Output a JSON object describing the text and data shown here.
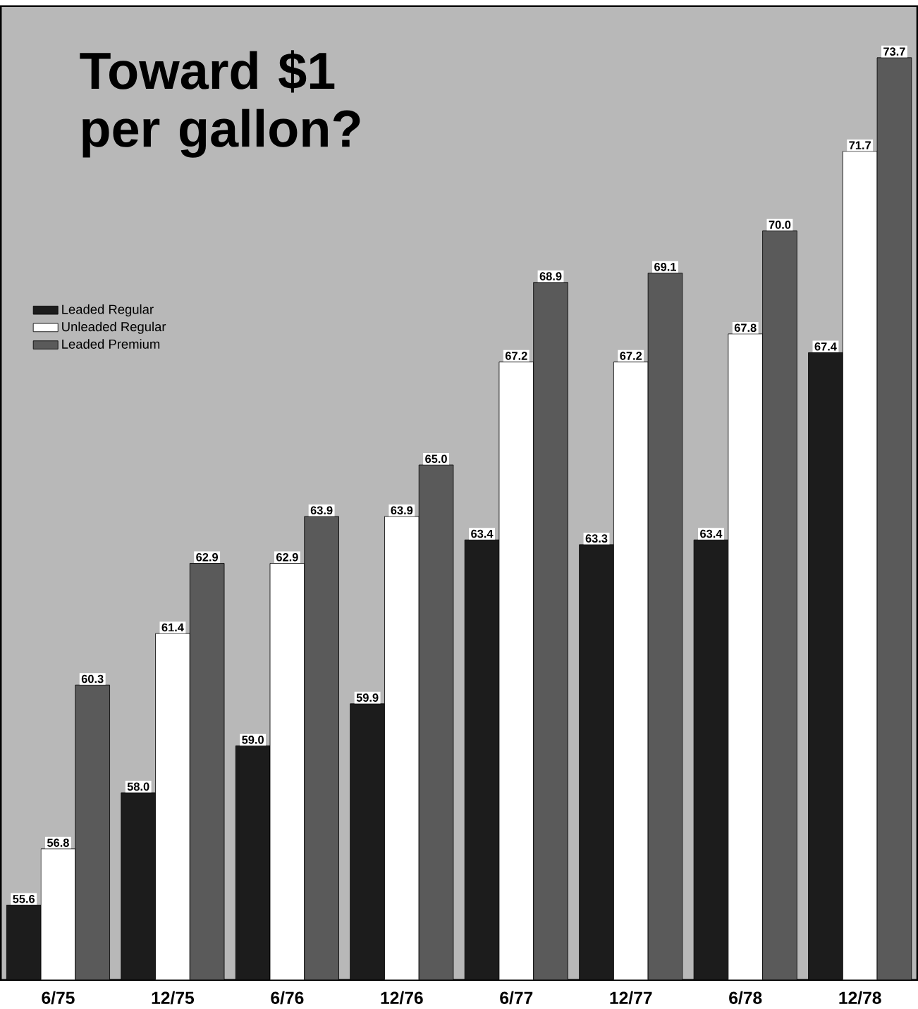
{
  "chart_data": {
    "type": "bar",
    "title": "Toward $1 per gallon?",
    "categories": [
      "6/75",
      "12/75",
      "6/76",
      "12/76",
      "6/77",
      "12/77",
      "6/78",
      "12/78"
    ],
    "series": [
      {
        "name": "Leaded Regular",
        "color": "#1c1c1c",
        "values": [
          55.6,
          58.0,
          59.0,
          59.9,
          63.4,
          63.3,
          63.4,
          67.4
        ],
        "value_labels": [
          "55.6",
          "58.0",
          "59.0",
          "59.9",
          "63.4",
          "63.3",
          "63.4",
          "67.4"
        ]
      },
      {
        "name": "Unleaded Regular",
        "color": "#ffffff",
        "values": [
          56.8,
          61.4,
          62.9,
          63.9,
          67.2,
          67.2,
          67.8,
          71.7
        ],
        "value_labels": [
          "56.8",
          "61.4",
          "62.9",
          "63.9",
          "67.2",
          "67.2",
          "67.8",
          "71.7"
        ]
      },
      {
        "name": "Leaded Premium",
        "color": "#5a5a5a",
        "values": [
          60.3,
          62.9,
          63.9,
          65.0,
          68.9,
          69.1,
          70.0,
          73.7
        ],
        "value_labels": [
          "60.3",
          "62.9",
          "63.9",
          "65.0",
          "68.9",
          "69.1",
          "70.0",
          "73.7"
        ]
      }
    ],
    "ylim": [
      54,
      74.8
    ],
    "legend": "top left",
    "tick_labels": "x"
  }
}
